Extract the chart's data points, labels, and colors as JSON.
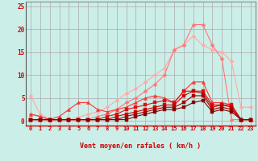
{
  "background_color": "#cceee8",
  "grid_color": "#aaaaaa",
  "xlabel": "Vent moyen/en rafales ( km/h )",
  "xlabel_color": "#cc0000",
  "tick_color": "#cc0000",
  "x_ticks": [
    0,
    1,
    2,
    3,
    4,
    5,
    6,
    7,
    8,
    9,
    10,
    11,
    12,
    13,
    14,
    15,
    16,
    17,
    18,
    19,
    20,
    21,
    22,
    23
  ],
  "y_ticks": [
    0,
    5,
    10,
    15,
    20,
    25
  ],
  "ylim": [
    -1,
    26
  ],
  "xlim": [
    -0.5,
    23.5
  ],
  "series": [
    {
      "color": "#ffaaaa",
      "linewidth": 0.8,
      "marker": "D",
      "markersize": 2.5,
      "data": [
        5.5,
        1.5,
        0.3,
        0.3,
        0.3,
        0.8,
        1.5,
        2.0,
        3.0,
        4.5,
        6.0,
        7.0,
        8.5,
        10.0,
        11.5,
        15.5,
        16.5,
        18.5,
        16.5,
        15.5,
        15.0,
        13.0,
        3.0,
        3.0
      ]
    },
    {
      "color": "#ff7777",
      "linewidth": 0.8,
      "marker": "D",
      "markersize": 2.5,
      "data": [
        1.5,
        1.0,
        0.3,
        0.3,
        0.3,
        0.3,
        0.3,
        1.0,
        1.5,
        2.5,
        4.0,
        5.0,
        6.5,
        8.0,
        10.0,
        15.5,
        16.5,
        21.0,
        21.0,
        16.5,
        13.5,
        0.3,
        0.3,
        0.3
      ]
    },
    {
      "color": "#ff3333",
      "linewidth": 0.8,
      "marker": "^",
      "markersize": 3,
      "data": [
        1.5,
        1.0,
        0.3,
        1.0,
        2.5,
        4.0,
        4.0,
        2.5,
        2.0,
        2.5,
        3.0,
        4.0,
        5.0,
        5.5,
        5.0,
        4.0,
        6.5,
        8.5,
        8.5,
        4.0,
        4.0,
        3.5,
        0.3,
        0.3
      ]
    },
    {
      "color": "#dd1111",
      "linewidth": 0.8,
      "marker": "s",
      "markersize": 2.5,
      "data": [
        0.3,
        0.3,
        0.3,
        0.3,
        0.3,
        0.3,
        0.3,
        0.3,
        1.0,
        1.5,
        2.5,
        3.0,
        3.5,
        4.0,
        4.5,
        4.0,
        6.5,
        6.5,
        6.5,
        3.5,
        3.5,
        3.5,
        0.3,
        0.3
      ]
    },
    {
      "color": "#cc0000",
      "linewidth": 0.8,
      "marker": "s",
      "markersize": 2.5,
      "data": [
        0.3,
        0.3,
        0.3,
        0.3,
        0.3,
        0.3,
        0.3,
        0.3,
        0.3,
        1.0,
        1.5,
        2.0,
        2.5,
        3.0,
        3.5,
        3.5,
        5.5,
        6.5,
        6.0,
        3.0,
        3.5,
        3.0,
        0.3,
        0.3
      ]
    },
    {
      "color": "#aa0000",
      "linewidth": 0.8,
      "marker": "s",
      "markersize": 2.5,
      "data": [
        0.3,
        0.3,
        0.3,
        0.3,
        0.3,
        0.3,
        0.3,
        0.3,
        0.3,
        0.3,
        1.0,
        1.5,
        2.0,
        2.5,
        3.0,
        3.0,
        4.0,
        5.5,
        5.5,
        2.5,
        3.0,
        2.5,
        0.3,
        0.3
      ]
    },
    {
      "color": "#880000",
      "linewidth": 0.8,
      "marker": "s",
      "markersize": 2.5,
      "data": [
        0.3,
        0.3,
        0.3,
        0.3,
        0.3,
        0.3,
        0.3,
        0.3,
        0.3,
        0.3,
        0.3,
        1.0,
        1.5,
        2.0,
        2.5,
        2.5,
        3.0,
        4.0,
        4.5,
        2.0,
        2.5,
        2.0,
        0.3,
        0.3
      ]
    }
  ],
  "arrows": [
    "↓",
    "↓",
    "↓",
    "↓",
    "↓",
    "↓",
    "↓",
    "↓",
    "↓",
    "↓",
    "←",
    "←",
    "←",
    "←",
    "↖",
    "←",
    "↑",
    "←",
    "←",
    "←",
    "←",
    "↖",
    "↗",
    "↗"
  ]
}
